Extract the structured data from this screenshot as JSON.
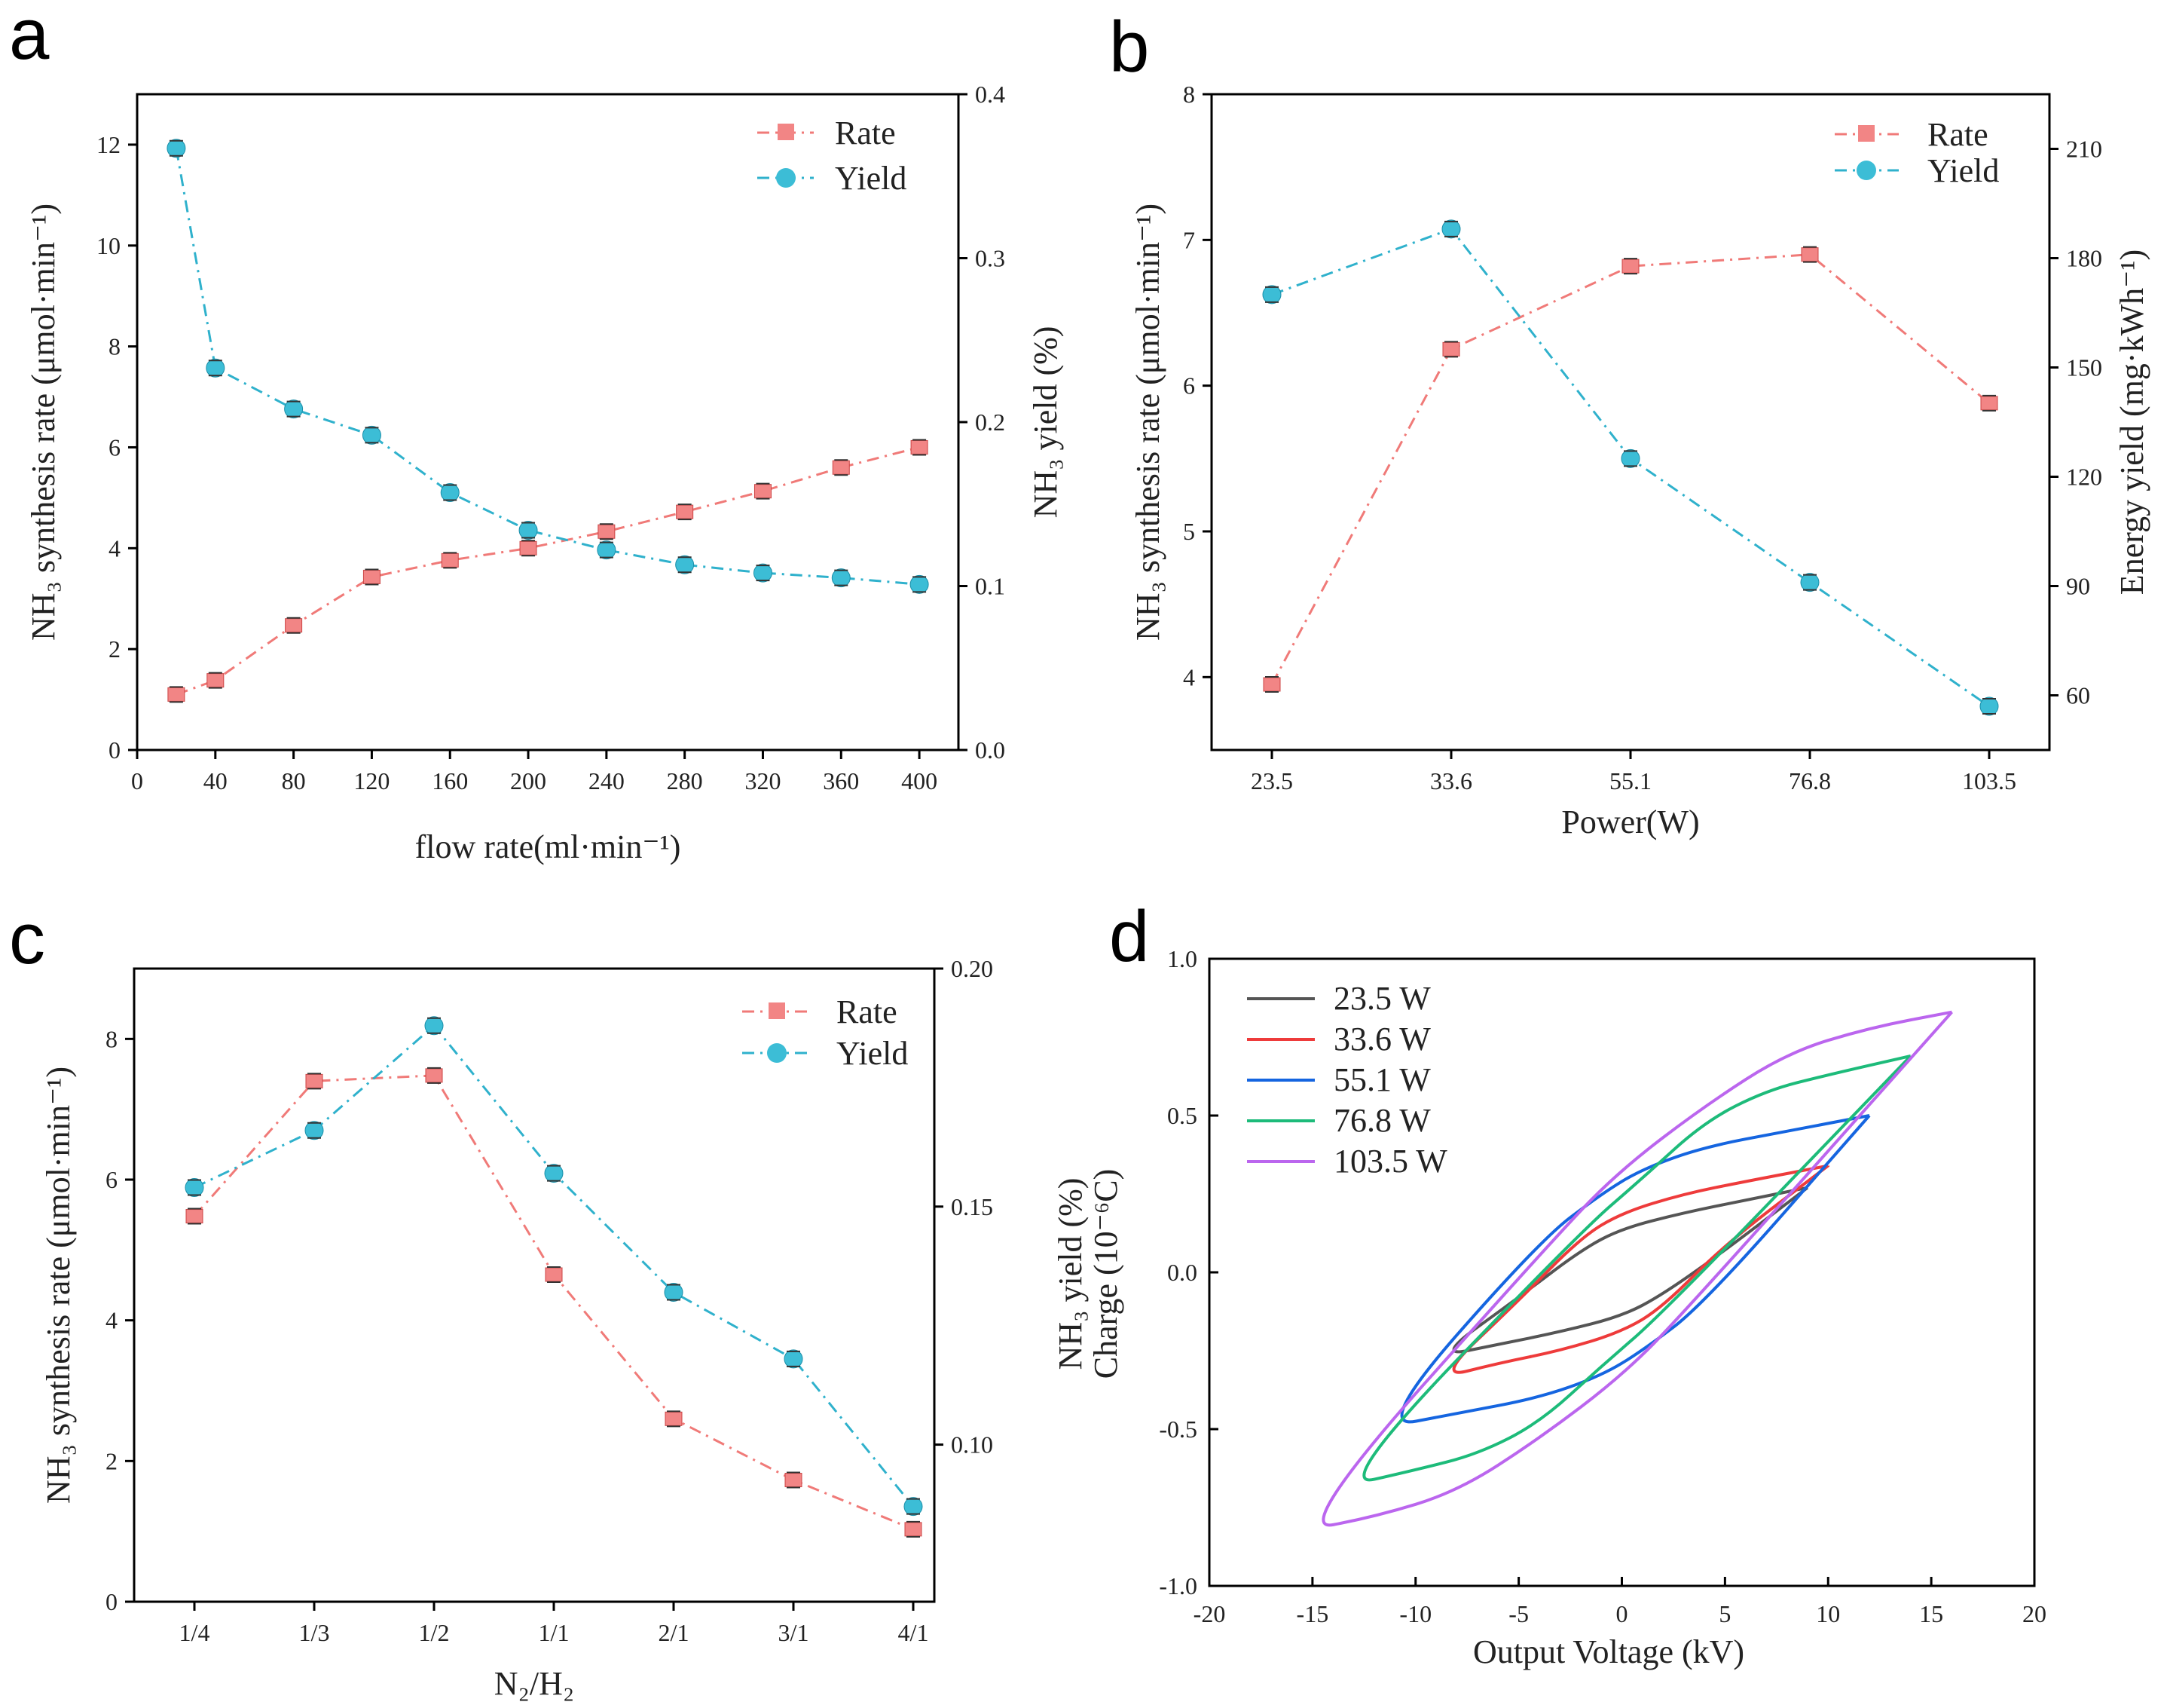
{
  "panels": {
    "a": {
      "letter": "a",
      "xlabel": "flow rate(ml·min⁻¹)",
      "ylabel_left": "NH₃ synthesis rate (μmol·min⁻¹)",
      "ylabel_right": "NH₃ yield (%)",
      "legend": [
        "Rate",
        "Yield"
      ]
    },
    "b": {
      "letter": "b",
      "xlabel": "Power(W)",
      "ylabel_left": "NH₃ synthesis rate (μmol·min⁻¹)",
      "ylabel_right": "Energy yield (mg·kWh⁻¹)",
      "legend": [
        "Rate",
        "Yield"
      ]
    },
    "c": {
      "letter": "c",
      "xlabel": "N₂/H₂",
      "ylabel_left": "NH₃ synthesis rate (μmol·min⁻¹)",
      "ylabel_right": "NH₃ yield (%)",
      "legend": [
        "Rate",
        "Yield"
      ]
    },
    "d": {
      "letter": "d",
      "xlabel": "Output Voltage (kV)",
      "ylabel_left": "Charge (10⁻⁶C)",
      "ylabel_overlap": "NH₃ yield (%)",
      "legend": [
        "23.5 W",
        "33.6 W",
        "55.1 W",
        "76.8 W",
        "103.5 W"
      ]
    }
  },
  "colors": {
    "rate": "#f07a78",
    "yield": "#2fb1cc",
    "rate_marker": "#f28585",
    "yield_marker": "#3cbdd6",
    "d_series": [
      "#555555",
      "#ee3b3b",
      "#1565e0",
      "#1dbb7a",
      "#bb66ee"
    ]
  },
  "chart_data": [
    {
      "panel": "a",
      "type": "line",
      "x": [
        20,
        40,
        80,
        120,
        160,
        200,
        240,
        280,
        320,
        360,
        400
      ],
      "xticks": [
        0,
        40,
        80,
        120,
        160,
        200,
        240,
        280,
        320,
        360,
        400
      ],
      "xlim": [
        0,
        420
      ],
      "ylim_left": [
        0,
        13
      ],
      "yticks_left": [
        0,
        2,
        4,
        6,
        8,
        10,
        12
      ],
      "ylim_right": [
        0.0,
        0.4
      ],
      "yticks_right": [
        "0.0",
        "0.1",
        "0.2",
        "0.3",
        "0.4"
      ],
      "series": [
        {
          "name": "Rate",
          "axis": "left",
          "values": [
            1.1,
            1.38,
            2.47,
            3.43,
            3.76,
            4.0,
            4.33,
            4.72,
            5.13,
            5.6,
            6.0
          ]
        },
        {
          "name": "Yield",
          "axis": "right",
          "values": [
            0.367,
            0.233,
            0.208,
            0.192,
            0.157,
            0.134,
            0.122,
            0.113,
            0.108,
            0.105,
            0.101
          ]
        }
      ]
    },
    {
      "panel": "b",
      "type": "line",
      "categories": [
        "23.5",
        "33.6",
        "55.1",
        "76.8",
        "103.5"
      ],
      "ylim_left": [
        3.5,
        8
      ],
      "yticks_left": [
        4,
        5,
        6,
        7,
        8
      ],
      "ylim_right": [
        45,
        225
      ],
      "yticks_right": [
        60,
        90,
        120,
        150,
        180,
        210
      ],
      "series": [
        {
          "name": "Rate",
          "axis": "left",
          "values": [
            3.95,
            6.25,
            6.82,
            6.9,
            5.88
          ]
        },
        {
          "name": "Yield",
          "axis": "right",
          "values": [
            170,
            188,
            125,
            91,
            57
          ]
        }
      ]
    },
    {
      "panel": "c",
      "type": "line",
      "categories": [
        "1/4",
        "1/3",
        "1/2",
        "1/1",
        "2/1",
        "3/1",
        "4/1"
      ],
      "ylim_left": [
        0,
        9
      ],
      "yticks_left": [
        0,
        2,
        4,
        6,
        8
      ],
      "ylim_right": [
        0.067,
        0.2
      ],
      "yticks_right": [
        "0.10",
        "0.15",
        "0.20"
      ],
      "series": [
        {
          "name": "Rate",
          "axis": "left",
          "values": [
            5.48,
            7.4,
            7.48,
            4.65,
            2.6,
            1.73,
            1.03
          ]
        },
        {
          "name": "Yield",
          "axis": "right",
          "values": [
            0.154,
            0.166,
            0.188,
            0.157,
            0.132,
            0.118,
            0.087
          ]
        }
      ]
    },
    {
      "panel": "d",
      "type": "line",
      "xlim": [
        -20,
        20
      ],
      "xticks": [
        -20,
        -15,
        -10,
        -5,
        0,
        5,
        10,
        15,
        20
      ],
      "ylim": [
        -1.0,
        1.0
      ],
      "yticks": [
        "-1.0",
        "-0.5",
        "0.0",
        "0.5",
        "1.0"
      ],
      "series": [
        {
          "name": "23.5 W",
          "loop": [
            [
              9,
              0.27
            ],
            [
              6,
              0.23
            ],
            [
              3,
              0.19
            ],
            [
              0,
              0.14
            ],
            [
              -2,
              0.07
            ],
            [
              -5,
              -0.08
            ],
            [
              -9,
              -0.27
            ],
            [
              -6,
              -0.23
            ],
            [
              -3,
              -0.19
            ],
            [
              0,
              -0.14
            ],
            [
              2,
              -0.07
            ],
            [
              5,
              0.07
            ],
            [
              9,
              0.27
            ]
          ]
        },
        {
          "name": "33.6 W",
          "loop": [
            [
              10,
              0.34
            ],
            [
              6,
              0.29
            ],
            [
              3,
              0.25
            ],
            [
              0,
              0.19
            ],
            [
              -2,
              0.11
            ],
            [
              -5,
              -0.09
            ],
            [
              -9,
              -0.34
            ],
            [
              -6,
              -0.29
            ],
            [
              -3,
              -0.25
            ],
            [
              0,
              -0.19
            ],
            [
              2,
              -0.11
            ],
            [
              5,
              0.09
            ],
            [
              10,
              0.34
            ]
          ]
        },
        {
          "name": "55.1 W",
          "loop": [
            [
              12,
              0.5
            ],
            [
              8,
              0.45
            ],
            [
              4,
              0.4
            ],
            [
              1,
              0.33
            ],
            [
              -1,
              0.25
            ],
            [
              -4,
              0.1
            ],
            [
              -12,
              -0.5
            ],
            [
              -8,
              -0.45
            ],
            [
              -4,
              -0.4
            ],
            [
              -1,
              -0.33
            ],
            [
              1,
              -0.25
            ],
            [
              4,
              -0.1
            ],
            [
              12,
              0.5
            ]
          ]
        },
        {
          "name": "76.8 W",
          "loop": [
            [
              14,
              0.69
            ],
            [
              10,
              0.63
            ],
            [
              7,
              0.58
            ],
            [
              4,
              0.48
            ],
            [
              1,
              0.3
            ],
            [
              -2,
              0.13
            ],
            [
              -14,
              -0.69
            ],
            [
              -10,
              -0.63
            ],
            [
              -7,
              -0.58
            ],
            [
              -4,
              -0.48
            ],
            [
              -1,
              -0.3
            ],
            [
              2,
              -0.13
            ],
            [
              14,
              0.69
            ]
          ]
        },
        {
          "name": "103.5 W",
          "loop": [
            [
              16,
              0.83
            ],
            [
              12,
              0.78
            ],
            [
              8,
              0.7
            ],
            [
              4,
              0.53
            ],
            [
              0,
              0.33
            ],
            [
              -3,
              0.13
            ],
            [
              -16,
              -0.83
            ],
            [
              -12,
              -0.78
            ],
            [
              -8,
              -0.7
            ],
            [
              -4,
              -0.53
            ],
            [
              0,
              -0.33
            ],
            [
              3,
              -0.13
            ],
            [
              16,
              0.83
            ]
          ]
        }
      ]
    }
  ]
}
